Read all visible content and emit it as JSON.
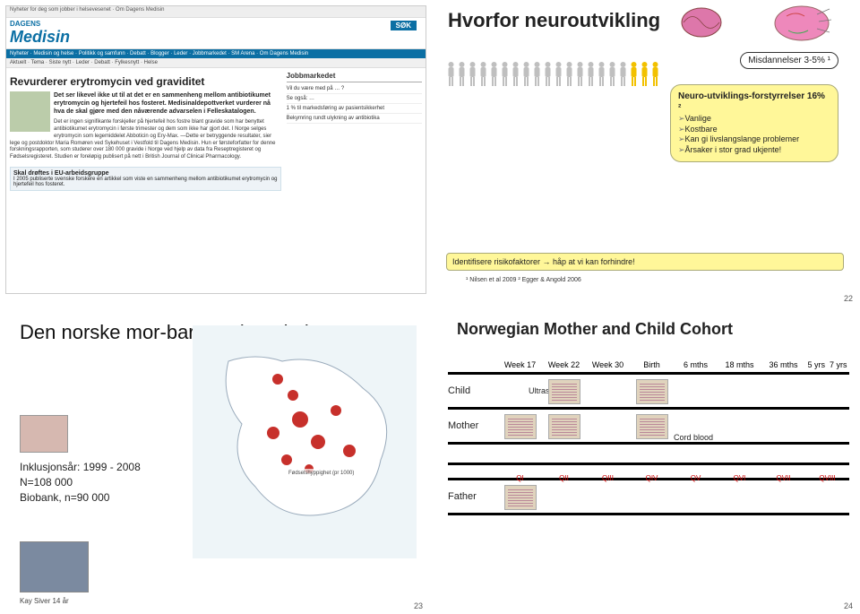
{
  "q1": {
    "topbar": "Nyheter for deg som jobber i helsevesenet · Om Dagens Medisin",
    "logo_top": "DAGENS",
    "logo_main": "Medisin",
    "sok": "SØK",
    "menu": "Nyheter · Medisin og helse · Politikk og samfunn · Debatt · Blogger · Leder · Jobbmarkedet · SM Arena · Om Dagens Medisin",
    "submenu": "Aktuelt · Tema · Siste nytt · Leder · Debatt · Fylkesnytt · Helse",
    "headline": "Revurderer erytromycin ved graviditet",
    "lead": "Det ser likevel ikke ut til at det er en sammenheng mellom antibiotikumet erytromycin og hjertefeil hos fosteret. Medisinaldepottverket vurderer nå hva de skal gjøre med den nåværende advarselen i Felleskatalogen.",
    "text": "Det er ingen signifikante forskjeller på hjertefeil hos fostre blant gravide som har benyttet antibiotikumet erytromycin i første trimester og dem som ikke har gjort det. I Norge selges erytromycin som legemiddelet Abboticin og Ery-Max.\n\n—Dette er betryggende resultater, sier lege og postdoktor Maria Romøren ved Sykehuset i Vestfold til Dagens Medisin.\n\nHun er førsteforfatter for denne forskningsrapporten, som studerer over 180 000 gravide i Norge ved hjelp av data fra Reseptregisteret og Fødselsregisteret. Studien er foreløpig publisert på nett i British Journal of Clinical Pharmacology.",
    "box_title": "Skal drøftes i EU-arbeidsgruppe",
    "box_text": "I 2005 publiserte svenske forskere en artikkel som viste en sammenheng mellom antibiotikumet erytromycin og hjertefeil hos fosteret.",
    "side_header": "Jobbmarkedet",
    "side_items": [
      "Vil du være med på … ?",
      "Se også: …",
      "1 % til markedsføring av pasientsikkerhet",
      "Bekymring rundt ulykning av antibiotika"
    ]
  },
  "q2": {
    "title": "Hvorfor neuroutvikling",
    "badge": "Misdannelser 3-5% ¹",
    "callout_title": "Neuro-utviklings-forstyrrelser 16% ²",
    "callout_lines": [
      "Vanlige",
      "Kostbare",
      "Kan gi livslangslange problemer",
      "Årsaker i stor grad ukjente!"
    ],
    "bottom": "Identifisere risikofaktorer        →        håp at vi kan forhindre!",
    "footnote": "¹ Nilsen et al 2009 ² Egger & Angold 2006",
    "people_total": 20,
    "people_highlight": 3,
    "color_person": "#bfbfbf",
    "color_person_hi": "#f2c100",
    "pagenum": "22"
  },
  "q3": {
    "title": "Den norske mor-barn undersøkelsen",
    "line1": "Inklusjonsår: 1999 - 2008",
    "line2": "N=108 000",
    "line3": "Biobank, n=90 000",
    "credit": "Kay Siver 14 år",
    "legend": "Fødselshyppighet (pr 1000)",
    "pagenum": "23"
  },
  "q4": {
    "title": "Norwegian Mother and Child Cohort",
    "cols": [
      "Week 17",
      "Week 22",
      "Week 30",
      "Birth",
      "6 mths",
      "18 mths",
      "36 mths",
      "5 yrs",
      "7 yrs"
    ],
    "rows": {
      "child": "Child",
      "mother": "Mother",
      "father": "Father"
    },
    "annot_ultrasound": "Ultrasound",
    "annot_cord": "Cord blood",
    "qtags": [
      "QI",
      "QII",
      "QIII",
      "QIV",
      "QV",
      "QVI",
      "QVII",
      "QVIII"
    ],
    "pagenum": "24"
  }
}
